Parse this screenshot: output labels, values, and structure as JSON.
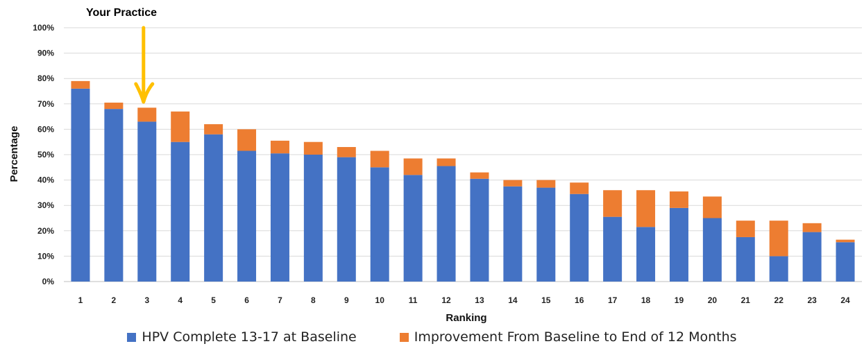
{
  "chart_data": {
    "type": "bar",
    "stacked": true,
    "categories": [
      "1",
      "2",
      "3",
      "4",
      "5",
      "6",
      "7",
      "8",
      "9",
      "10",
      "11",
      "12",
      "13",
      "14",
      "15",
      "16",
      "17",
      "18",
      "19",
      "20",
      "21",
      "22",
      "23",
      "24"
    ],
    "series": [
      {
        "name": "HPV Complete 13-17 at Baseline",
        "color": "#4472C4",
        "values": [
          76,
          68,
          63,
          55,
          58,
          51.5,
          50.5,
          50,
          49,
          45,
          42,
          45.5,
          40.5,
          37.5,
          37,
          34.5,
          25.5,
          21.5,
          29,
          25,
          17.5,
          10,
          19.5,
          15.5
        ]
      },
      {
        "name": "Improvement From Baseline to End of 12 Months",
        "color": "#ED7D31",
        "values": [
          3,
          2.5,
          5.5,
          12,
          4,
          8.5,
          5,
          5,
          4,
          6.5,
          6.5,
          3,
          2.5,
          2.5,
          3,
          4.5,
          10.5,
          14.5,
          6.5,
          8.5,
          6.5,
          14,
          3.5,
          1
        ]
      }
    ],
    "xlabel": "Ranking",
    "ylabel": "Percentage",
    "ylim": [
      0,
      100
    ],
    "yticks": [
      "0%",
      "10%",
      "20%",
      "30%",
      "40%",
      "50%",
      "60%",
      "70%",
      "80%",
      "90%",
      "100%"
    ],
    "grid": true,
    "legend_position": "bottom",
    "annotation": {
      "text": "Your Practice",
      "target_category": "3",
      "arrow_color": "#FFC000"
    }
  }
}
